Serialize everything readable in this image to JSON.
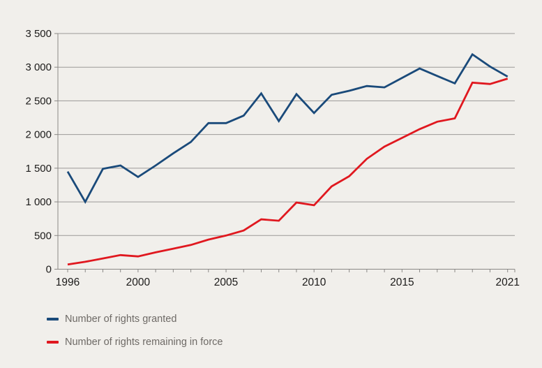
{
  "colors": {
    "background": "#f1efeb",
    "gridline": "#9b9997",
    "axis": "#8a8886",
    "tick_label": "#1c1b1a",
    "legend_text": "#6e6a66",
    "series_granted": "#1a4a7a",
    "series_remaining": "#e0181f"
  },
  "legend": {
    "items": [
      {
        "label": "Number of rights granted"
      },
      {
        "label": "Number of rights remaining in force"
      }
    ]
  },
  "chart_data": {
    "type": "line",
    "title": "",
    "xlabel": "",
    "ylabel": "",
    "grid": "horizontal",
    "legend_position": "bottom-left",
    "xlim": [
      1996,
      2021
    ],
    "ylim": [
      0,
      3500
    ],
    "y_tick_step": 500,
    "y_tick_labels": [
      "0",
      "500",
      "1 000",
      "1 500",
      "2 000",
      "2 500",
      "3 000",
      "3 500"
    ],
    "x_tick_every": 1,
    "x_tick_labels": [
      {
        "year": 1996,
        "label": "1996"
      },
      {
        "year": 2000,
        "label": "2000"
      },
      {
        "year": 2005,
        "label": "2005"
      },
      {
        "year": 2010,
        "label": "2010"
      },
      {
        "year": 2015,
        "label": "2015"
      },
      {
        "year": 2021,
        "label": "2021"
      }
    ],
    "x": [
      1996,
      1997,
      1998,
      1999,
      2000,
      2001,
      2002,
      2003,
      2004,
      2005,
      2006,
      2007,
      2008,
      2009,
      2010,
      2011,
      2012,
      2013,
      2014,
      2015,
      2016,
      2017,
      2018,
      2019,
      2020,
      2021
    ],
    "series": [
      {
        "name": "Number of rights granted",
        "color": "#1a4a7a",
        "values": [
          1450,
          1000,
          1490,
          1540,
          1370,
          1540,
          1720,
          1890,
          2170,
          2170,
          2280,
          2610,
          2200,
          2600,
          2320,
          2590,
          2650,
          2720,
          2700,
          2840,
          2980,
          2870,
          2760,
          3190,
          3010,
          2860
        ]
      },
      {
        "name": "Number of rights remaining in force",
        "color": "#e0181f",
        "values": [
          70,
          110,
          160,
          210,
          190,
          250,
          305,
          360,
          440,
          500,
          575,
          740,
          720,
          990,
          950,
          1230,
          1380,
          1640,
          1820,
          1950,
          2080,
          2190,
          2240,
          2770,
          2750,
          2830
        ]
      }
    ]
  }
}
